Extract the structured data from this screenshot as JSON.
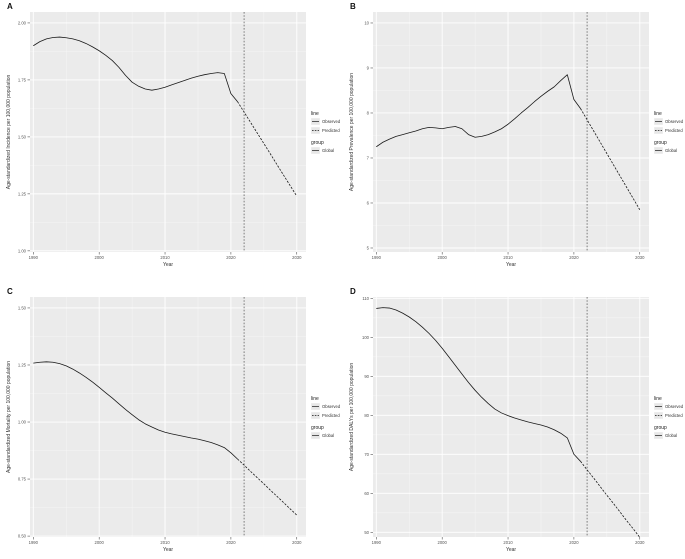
{
  "figure": {
    "background": "#ffffff"
  },
  "colors": {
    "plot_bg": "#ebebeb",
    "grid_major": "#ffffff",
    "grid_minor": "#f6f6f6",
    "line": "#1a1a1a",
    "divider": "#4d4d4d",
    "tick": "#333333"
  },
  "chart_data": [
    {
      "type": "line",
      "letter": "A",
      "ylabel": "Age-standardized Incidence per 100,000 population",
      "xlabel": "Year",
      "xlim": [
        1989.5,
        2031.4
      ],
      "ylim": [
        0.995,
        2.048
      ],
      "xticks": [
        1990,
        2000,
        2010,
        2020,
        2030
      ],
      "x_minor": [
        1995,
        2005,
        2015,
        2025
      ],
      "yticks": [
        2.0,
        1.75,
        1.5,
        1.25,
        1.0
      ],
      "ytick_labels": [
        "2.00",
        "1.75",
        "1.50",
        "1.25",
        "1.00"
      ],
      "y_minor": [
        1.875,
        1.625,
        1.375,
        1.125
      ],
      "divider_year": 2022,
      "legend": {
        "line_title": "line",
        "entries": [
          "Observed",
          "Predicted"
        ],
        "group_title": "group",
        "group_entries": [
          "Global"
        ]
      },
      "series": [
        {
          "name": "Observed",
          "style": "solid",
          "points": [
            [
              1990,
              1.9
            ],
            [
              1991,
              1.918
            ],
            [
              1992,
              1.93
            ],
            [
              1993,
              1.936
            ],
            [
              1994,
              1.938
            ],
            [
              1995,
              1.935
            ],
            [
              1996,
              1.93
            ],
            [
              1997,
              1.922
            ],
            [
              1998,
              1.91
            ],
            [
              1999,
              1.895
            ],
            [
              2000,
              1.878
            ],
            [
              2001,
              1.858
            ],
            [
              2002,
              1.835
            ],
            [
              2003,
              1.805
            ],
            [
              2004,
              1.77
            ],
            [
              2005,
              1.74
            ],
            [
              2006,
              1.722
            ],
            [
              2007,
              1.71
            ],
            [
              2008,
              1.705
            ],
            [
              2009,
              1.71
            ],
            [
              2010,
              1.718
            ],
            [
              2011,
              1.728
            ],
            [
              2012,
              1.738
            ],
            [
              2013,
              1.748
            ],
            [
              2014,
              1.758
            ],
            [
              2015,
              1.766
            ],
            [
              2016,
              1.773
            ],
            [
              2017,
              1.778
            ],
            [
              2018,
              1.782
            ],
            [
              2019,
              1.778
            ],
            [
              2020,
              1.69
            ],
            [
              2021,
              1.655
            ]
          ]
        },
        {
          "name": "Predicted",
          "style": "dashed",
          "points": [
            [
              2021,
              1.655
            ],
            [
              2022,
              1.609
            ],
            [
              2023,
              1.563
            ],
            [
              2024,
              1.517
            ],
            [
              2025,
              1.471
            ],
            [
              2026,
              1.425
            ],
            [
              2027,
              1.378
            ],
            [
              2028,
              1.332
            ],
            [
              2029,
              1.286
            ],
            [
              2030,
              1.24
            ]
          ]
        }
      ]
    },
    {
      "type": "line",
      "letter": "B",
      "ylabel": "Age-standardized Prevalence per 100,000 population",
      "xlabel": "Year",
      "xlim": [
        1989.5,
        2031.4
      ],
      "ylim": [
        4.911,
        10.244
      ],
      "xticks": [
        1990,
        2000,
        2010,
        2020,
        2030
      ],
      "x_minor": [
        1995,
        2005,
        2015,
        2025
      ],
      "yticks": [
        10,
        9,
        8,
        7,
        6,
        5
      ],
      "ytick_labels": [
        "10",
        "9",
        "8",
        "7",
        "6",
        "5"
      ],
      "y_minor": [
        9.5,
        8.5,
        7.5,
        6.5,
        5.5
      ],
      "divider_year": 2022,
      "legend": {
        "line_title": "line",
        "entries": [
          "Observed",
          "Predicted"
        ],
        "group_title": "group",
        "group_entries": [
          "Global"
        ]
      },
      "series": [
        {
          "name": "Observed",
          "style": "solid",
          "points": [
            [
              1990,
              7.25
            ],
            [
              1991,
              7.35
            ],
            [
              1992,
              7.42
            ],
            [
              1993,
              7.48
            ],
            [
              1994,
              7.52
            ],
            [
              1995,
              7.56
            ],
            [
              1996,
              7.6
            ],
            [
              1997,
              7.65
            ],
            [
              1998,
              7.68
            ],
            [
              1999,
              7.67
            ],
            [
              2000,
              7.65
            ],
            [
              2001,
              7.68
            ],
            [
              2002,
              7.7
            ],
            [
              2003,
              7.65
            ],
            [
              2004,
              7.52
            ],
            [
              2005,
              7.46
            ],
            [
              2006,
              7.48
            ],
            [
              2007,
              7.52
            ],
            [
              2008,
              7.58
            ],
            [
              2009,
              7.65
            ],
            [
              2010,
              7.75
            ],
            [
              2011,
              7.87
            ],
            [
              2012,
              8.0
            ],
            [
              2013,
              8.12
            ],
            [
              2014,
              8.25
            ],
            [
              2015,
              8.37
            ],
            [
              2016,
              8.48
            ],
            [
              2017,
              8.58
            ],
            [
              2018,
              8.72
            ],
            [
              2019,
              8.85
            ],
            [
              2020,
              8.3
            ],
            [
              2021,
              8.1
            ]
          ]
        },
        {
          "name": "Predicted",
          "style": "dashed",
          "points": [
            [
              2021,
              8.1
            ],
            [
              2022,
              7.85
            ],
            [
              2023,
              7.6
            ],
            [
              2024,
              7.35
            ],
            [
              2025,
              7.1
            ],
            [
              2026,
              6.85
            ],
            [
              2027,
              6.6
            ],
            [
              2028,
              6.35
            ],
            [
              2029,
              6.1
            ],
            [
              2030,
              5.85
            ]
          ]
        }
      ]
    },
    {
      "type": "line",
      "letter": "C",
      "ylabel": "Age-standardized Mortality per 100,000 population",
      "xlabel": "Year",
      "xlim": [
        1989.5,
        2031.4
      ],
      "ylim": [
        0.496,
        1.548
      ],
      "xticks": [
        1990,
        2000,
        2010,
        2020,
        2030
      ],
      "x_minor": [
        1995,
        2005,
        2015,
        2025
      ],
      "yticks": [
        1.5,
        1.25,
        1.0,
        0.75,
        0.5
      ],
      "ytick_labels": [
        "1.50",
        "1.25",
        "1.00",
        "0.75",
        "0.50"
      ],
      "y_minor": [
        1.375,
        1.125,
        0.875,
        0.625
      ],
      "divider_year": 2022,
      "legend": {
        "line_title": "line",
        "entries": [
          "Observed",
          "Predicted"
        ],
        "group_title": "group",
        "group_entries": [
          "Global"
        ]
      },
      "series": [
        {
          "name": "Observed",
          "style": "solid",
          "points": [
            [
              1990,
              1.258
            ],
            [
              1991,
              1.262
            ],
            [
              1992,
              1.264
            ],
            [
              1993,
              1.262
            ],
            [
              1994,
              1.256
            ],
            [
              1995,
              1.246
            ],
            [
              1996,
              1.232
            ],
            [
              1997,
              1.215
            ],
            [
              1998,
              1.196
            ],
            [
              1999,
              1.175
            ],
            [
              2000,
              1.152
            ],
            [
              2001,
              1.128
            ],
            [
              2002,
              1.105
            ],
            [
              2003,
              1.08
            ],
            [
              2004,
              1.055
            ],
            [
              2005,
              1.032
            ],
            [
              2006,
              1.01
            ],
            [
              2007,
              0.992
            ],
            [
              2008,
              0.978
            ],
            [
              2009,
              0.965
            ],
            [
              2010,
              0.955
            ],
            [
              2011,
              0.948
            ],
            [
              2012,
              0.942
            ],
            [
              2013,
              0.936
            ],
            [
              2014,
              0.93
            ],
            [
              2015,
              0.925
            ],
            [
              2016,
              0.918
            ],
            [
              2017,
              0.91
            ],
            [
              2018,
              0.9
            ],
            [
              2019,
              0.888
            ],
            [
              2020,
              0.865
            ],
            [
              2021,
              0.838
            ]
          ]
        },
        {
          "name": "Predicted",
          "style": "dashed",
          "points": [
            [
              2021,
              0.838
            ],
            [
              2022,
              0.811
            ],
            [
              2023,
              0.783
            ],
            [
              2024,
              0.756
            ],
            [
              2025,
              0.729
            ],
            [
              2026,
              0.701
            ],
            [
              2027,
              0.674
            ],
            [
              2028,
              0.647
            ],
            [
              2029,
              0.619
            ],
            [
              2030,
              0.592
            ]
          ]
        }
      ]
    },
    {
      "type": "line",
      "letter": "D",
      "ylabel": "Age-standardized DALYs per 100,000 population",
      "xlabel": "Year",
      "xlim": [
        1989.5,
        2031.4
      ],
      "ylim": [
        48.79,
        110.33
      ],
      "xticks": [
        1990,
        2000,
        2010,
        2020,
        2030
      ],
      "x_minor": [
        1995,
        2005,
        2015,
        2025
      ],
      "yticks": [
        110,
        100,
        90,
        80,
        70,
        60,
        50
      ],
      "ytick_labels": [
        "110",
        "100",
        "90",
        "80",
        "70",
        "60",
        "50"
      ],
      "y_minor": [
        105,
        95,
        85,
        75,
        65,
        55
      ],
      "divider_year": 2022,
      "legend": {
        "line_title": "line",
        "entries": [
          "Observed",
          "Predicted"
        ],
        "group_title": "group",
        "group_entries": [
          "Global"
        ]
      },
      "series": [
        {
          "name": "Observed",
          "style": "solid",
          "points": [
            [
              1990,
              107.4
            ],
            [
              1991,
              107.6
            ],
            [
              1992,
              107.5
            ],
            [
              1993,
              107.0
            ],
            [
              1994,
              106.2
            ],
            [
              1995,
              105.2
            ],
            [
              1996,
              104.0
            ],
            [
              1997,
              102.6
            ],
            [
              1998,
              101.0
            ],
            [
              1999,
              99.2
            ],
            [
              2000,
              97.2
            ],
            [
              2001,
              95.0
            ],
            [
              2002,
              92.8
            ],
            [
              2003,
              90.6
            ],
            [
              2004,
              88.4
            ],
            [
              2005,
              86.4
            ],
            [
              2006,
              84.6
            ],
            [
              2007,
              83.0
            ],
            [
              2008,
              81.6
            ],
            [
              2009,
              80.6
            ],
            [
              2010,
              79.9
            ],
            [
              2011,
              79.3
            ],
            [
              2012,
              78.8
            ],
            [
              2013,
              78.3
            ],
            [
              2014,
              77.9
            ],
            [
              2015,
              77.5
            ],
            [
              2016,
              77.0
            ],
            [
              2017,
              76.3
            ],
            [
              2018,
              75.4
            ],
            [
              2019,
              74.2
            ],
            [
              2020,
              70.0
            ],
            [
              2021,
              68.2
            ]
          ]
        },
        {
          "name": "Predicted",
          "style": "dashed",
          "points": [
            [
              2021,
              68.2
            ],
            [
              2022,
              66.0
            ],
            [
              2023,
              63.9
            ],
            [
              2024,
              61.7
            ],
            [
              2025,
              59.5
            ],
            [
              2026,
              57.4
            ],
            [
              2027,
              55.2
            ],
            [
              2028,
              53.0
            ],
            [
              2029,
              50.9
            ],
            [
              2030,
              48.7
            ]
          ]
        }
      ]
    }
  ]
}
